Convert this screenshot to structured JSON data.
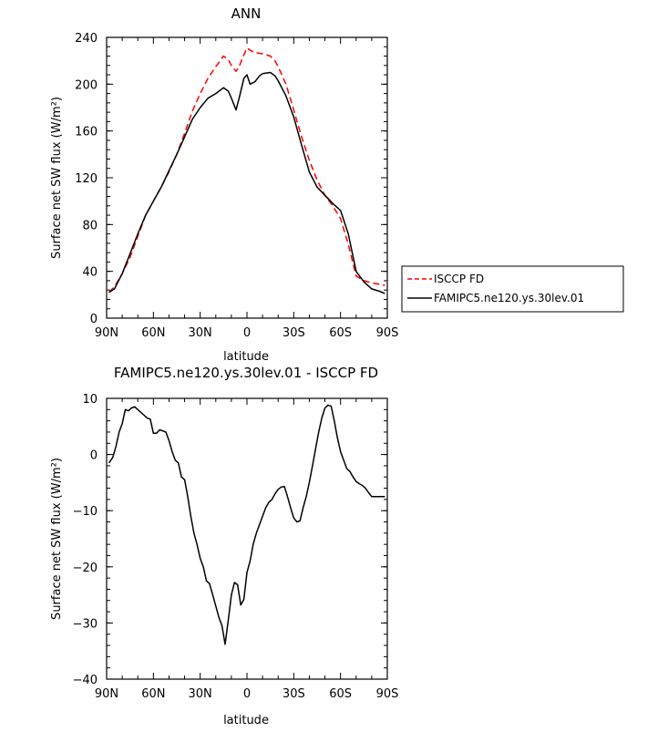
{
  "chart_data": [
    {
      "type": "line",
      "title": "ANN",
      "xlabel": "latitude",
      "ylabel": "Surface net SW flux (W/m²)",
      "xlim": [
        90,
        -90
      ],
      "ylim": [
        0,
        240
      ],
      "xticks": [
        90,
        60,
        30,
        0,
        -30,
        -60,
        -90
      ],
      "xtick_labels": [
        "90N",
        "60N",
        "30N",
        "0",
        "30S",
        "60S",
        "90S"
      ],
      "yticks": [
        0,
        40,
        80,
        120,
        160,
        200,
        240
      ],
      "ytick_labels": [
        "0",
        "40",
        "80",
        "120",
        "160",
        "200",
        "240"
      ],
      "grid": false,
      "legend_position": "right-outside",
      "series": [
        {
          "name": "ISCCP FD",
          "color": "#ff0000",
          "dash": "dashed",
          "x": [
            88.5,
            85,
            80,
            75,
            70,
            65,
            60,
            55,
            50,
            45,
            40,
            35,
            30,
            25,
            20,
            15,
            12,
            10,
            7,
            5,
            3,
            0,
            -2,
            -5,
            -10,
            -15,
            -18,
            -20,
            -25,
            -30,
            -35,
            -40,
            -45,
            -50,
            -55,
            -60,
            -65,
            -70,
            -75,
            -80,
            -85,
            -88.5
          ],
          "y": [
            22,
            27,
            38,
            52,
            70,
            88,
            100,
            112,
            125,
            140,
            158,
            177,
            192,
            205,
            215,
            224,
            221,
            216,
            211,
            215,
            222,
            231,
            229,
            227,
            226,
            224,
            220,
            215,
            200,
            178,
            155,
            135,
            118,
            105,
            96,
            85,
            63,
            36,
            32,
            30,
            29,
            28
          ]
        },
        {
          "name": "FAMIPC5.ne120.ys.30lev.01",
          "color": "#000000",
          "dash": "solid",
          "x": [
            88.5,
            85,
            80,
            75,
            70,
            65,
            60,
            55,
            50,
            45,
            40,
            35,
            30,
            25,
            20,
            15,
            12,
            10,
            7,
            5,
            2,
            0,
            -2,
            -5,
            -8,
            -10,
            -15,
            -18,
            -20,
            -25,
            -30,
            -35,
            -40,
            -45,
            -50,
            -55,
            -60,
            -65,
            -70,
            -75,
            -80,
            -85,
            -88.5
          ],
          "y": [
            22,
            25,
            38,
            55,
            72,
            88,
            100,
            112,
            126,
            140,
            155,
            170,
            180,
            188,
            192,
            197,
            194,
            188,
            178,
            188,
            205,
            208,
            200,
            202,
            207,
            209,
            210,
            207,
            203,
            190,
            172,
            148,
            125,
            112,
            105,
            98,
            92,
            72,
            40,
            31,
            25,
            23,
            21
          ]
        }
      ]
    },
    {
      "type": "line",
      "title": "FAMIPC5.ne120.ys.30lev.01 - ISCCP FD",
      "xlabel": "latitude",
      "ylabel": "Surface net SW flux (W/m²)",
      "xlim": [
        90,
        -90
      ],
      "ylim": [
        -40,
        10
      ],
      "xticks": [
        90,
        60,
        30,
        0,
        -30,
        -60,
        -90
      ],
      "xtick_labels": [
        "90N",
        "60N",
        "30N",
        "0",
        "30S",
        "60S",
        "90S"
      ],
      "yticks": [
        -40,
        -30,
        -20,
        -10,
        0,
        10
      ],
      "ytick_labels": [
        "−40",
        "−30",
        "−20",
        "−10",
        "0",
        "10"
      ],
      "grid": false,
      "series": [
        {
          "color": "#000000",
          "dash": "solid",
          "x": [
            88.5,
            86,
            84,
            82,
            80,
            78,
            76,
            74,
            72,
            70,
            68,
            66,
            64,
            62,
            60,
            58,
            56,
            54,
            52,
            50,
            48,
            46,
            44,
            42,
            40,
            38,
            36,
            34,
            32,
            30,
            28,
            26,
            24,
            22,
            20,
            18,
            16,
            14,
            12,
            10,
            8,
            6,
            4,
            2,
            0,
            -2,
            -4,
            -6,
            -8,
            -10,
            -12,
            -14,
            -16,
            -18,
            -20,
            -22,
            -24,
            -26,
            -28,
            -30,
            -32,
            -34,
            -36,
            -38,
            -40,
            -42,
            -44,
            -46,
            -48,
            -50,
            -52,
            -54,
            -56,
            -58,
            -60,
            -62,
            -64,
            -66,
            -68,
            -70,
            -72,
            -74,
            -76,
            -78,
            -80,
            -82,
            -84,
            -86,
            -88.5
          ],
          "y": [
            -1.5,
            -0.5,
            1.5,
            4,
            5.5,
            8,
            7.8,
            8.3,
            8.5,
            8,
            7.5,
            7,
            6.5,
            6.3,
            3.8,
            3.8,
            4.4,
            4.2,
            4,
            2.5,
            0.5,
            -1,
            -1.5,
            -4,
            -4.5,
            -7.5,
            -11,
            -14,
            -16,
            -18.5,
            -20,
            -22.5,
            -23,
            -25,
            -27,
            -29,
            -30.5,
            -33.8,
            -29.5,
            -25,
            -22.8,
            -23.2,
            -26.8,
            -25.8,
            -21,
            -19,
            -16,
            -14,
            -12.5,
            -11,
            -9.5,
            -8.5,
            -8,
            -7,
            -6.2,
            -5.8,
            -5.7,
            -7.5,
            -9.5,
            -11.3,
            -12,
            -11.8,
            -9.5,
            -7.5,
            -5,
            -2,
            1,
            4,
            6.5,
            8.3,
            8.8,
            8.6,
            6,
            3,
            0.5,
            -1,
            -2.5,
            -3,
            -4,
            -4.8,
            -5.2,
            -5.5,
            -6,
            -6.8,
            -7.5,
            -7.5,
            -7.5,
            -7.5,
            -7.5
          ]
        }
      ]
    }
  ]
}
